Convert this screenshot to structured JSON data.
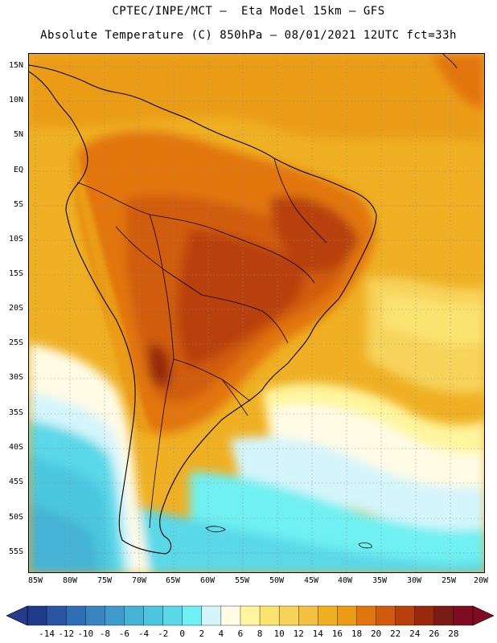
{
  "header": {
    "line1": "CPTEC/INPE/MCT –  Eta Model 15km – GFS",
    "line2": "Absolute Temperature (C) 850hPa – 08/01/2021 12UTC fct=33h"
  },
  "map": {
    "region": "South America",
    "lat_labels": [
      "15N",
      "10N",
      "5N",
      "EQ",
      "5S",
      "10S",
      "15S",
      "20S",
      "25S",
      "30S",
      "35S",
      "40S",
      "45S",
      "50S",
      "55S"
    ],
    "lon_labels": [
      "85W",
      "80W",
      "75W",
      "70W",
      "65W",
      "60W",
      "55W",
      "50W",
      "45W",
      "40W",
      "35W",
      "30W",
      "25W",
      "20W"
    ]
  },
  "legend": {
    "units": "C",
    "labels": [
      "-14",
      "-12",
      "-10",
      "-8",
      "-6",
      "-4",
      "-2",
      "0",
      "2",
      "4",
      "6",
      "8",
      "10",
      "12",
      "14",
      "16",
      "18",
      "20",
      "22",
      "24",
      "26",
      "28"
    ],
    "colors": [
      "#1f3a8a",
      "#2a55a3",
      "#2f6eb4",
      "#3a84c1",
      "#3f9bcc",
      "#45b2d6",
      "#4cc6df",
      "#5ad8e8",
      "#6ff0f2",
      "#d4f5fb",
      "#fffbe5",
      "#fff59e",
      "#fbe36f",
      "#f7d35a",
      "#f2c142",
      "#efb023",
      "#eb9c14",
      "#e2760e",
      "#d05b0f",
      "#b8400d",
      "#98290c",
      "#7a1b15",
      "#7f0c22"
    ],
    "underflow_color": "#233c8c",
    "overflow_color": "#7f0c22"
  }
}
